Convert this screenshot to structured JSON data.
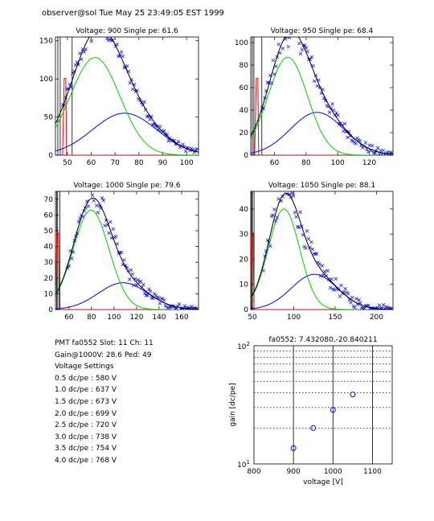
{
  "header": "observer@sol  Tue May 25 23:49:05 EST 1999",
  "info": {
    "pmt_line": "PMT fa0552 Slot: 11 Ch: 11",
    "gain_line": "Gain@1000V: 28.6 Ped: 49",
    "settings_title": "Voltage Settings",
    "settings": [
      "0.5 dc/pe : 580 V",
      "1.0 dc/pe : 637 V",
      "1.5 dc/pe : 673 V",
      "2.0 dc/pe : 699 V",
      "2.5 dc/pe : 720 V",
      "3.0 dc/pe : 738 V",
      "3.5 dc/pe : 754 V",
      "4.0 dc/pe : 768 V"
    ]
  },
  "colors": {
    "data_points": "#0000ff",
    "total_fit": "#000000",
    "gaussian_1pe": "#00d000",
    "gaussian_2pe": "#0000ff",
    "pedestal": "#ff0000",
    "gain_fit": "#ff0000"
  },
  "chart_data": [
    {
      "type": "scatter",
      "title": "Voltage: 900 Single pe: 61.6",
      "xlim": [
        45,
        105
      ],
      "ylim": [
        0,
        155
      ],
      "xticks": [
        50,
        60,
        70,
        80,
        90,
        100
      ],
      "yticks": [
        0,
        50,
        100,
        150
      ],
      "pedestal": {
        "position": 49,
        "lines_at": [
          46,
          47,
          52
        ]
      },
      "single_pe": {
        "mean": 61.6,
        "sigma": 10.4,
        "amplitude": 128
      },
      "double_pe": {
        "mean": 74,
        "sigma": 13.5,
        "amplitude": 55
      },
      "scatter_spread": 7
    },
    {
      "type": "scatter",
      "title": "Voltage: 950 Single pe: 68.4",
      "xlim": [
        45,
        135
      ],
      "ylim": [
        0,
        105
      ],
      "xticks": [
        60,
        80,
        100,
        120
      ],
      "yticks": [
        0,
        20,
        40,
        60,
        80,
        100
      ],
      "pedestal": {
        "position": 49,
        "lines_at": [
          46,
          47,
          52
        ]
      },
      "single_pe": {
        "mean": 68.4,
        "sigma": 12.5,
        "amplitude": 87
      },
      "double_pe": {
        "mean": 87,
        "sigma": 17,
        "amplitude": 38
      },
      "scatter_spread": 7
    },
    {
      "type": "scatter",
      "title": "Voltage: 1000 Single pe: 79.6",
      "xlim": [
        48,
        175
      ],
      "ylim": [
        0,
        75
      ],
      "xticks": [
        60,
        80,
        100,
        120,
        140,
        160
      ],
      "yticks": [
        0,
        10,
        20,
        30,
        40,
        50,
        60,
        70
      ],
      "pedestal": {
        "position": 50,
        "lines_at": [
          49,
          50,
          52
        ]
      },
      "single_pe": {
        "mean": 79.6,
        "sigma": 16,
        "amplitude": 63
      },
      "double_pe": {
        "mean": 108,
        "sigma": 22,
        "amplitude": 17
      },
      "scatter_spread": 5
    },
    {
      "type": "scatter",
      "title": "Voltage: 1050 Single pe: 88.1",
      "xlim": [
        48,
        220
      ],
      "ylim": [
        0,
        47
      ],
      "xticks": [
        50,
        100,
        150,
        200
      ],
      "yticks": [
        0,
        10,
        20,
        30,
        40
      ],
      "pedestal": {
        "position": 50,
        "lines_at": [
          49,
          50,
          52
        ]
      },
      "single_pe": {
        "mean": 88.1,
        "sigma": 19,
        "amplitude": 40
      },
      "double_pe": {
        "mean": 125,
        "sigma": 28,
        "amplitude": 14
      },
      "scatter_spread": 4
    },
    {
      "type": "line",
      "scale": "log",
      "title": "fa0552: 7.432080,-20.840211",
      "xlabel": "voltage [V]",
      "ylabel": "gain [dc/pe]",
      "xlim": [
        800,
        1150
      ],
      "ylim": [
        10,
        100
      ],
      "xticks": [
        800,
        900,
        1000,
        1100
      ],
      "xtick_labels": [
        "800",
        "900",
        "1000",
        "1100"
      ],
      "ytick_labels": [
        {
          "value": 10,
          "base": "10",
          "exp": "1"
        },
        {
          "value": 100,
          "base": "10",
          "exp": "2"
        }
      ],
      "x": [
        900,
        950,
        1000,
        1050
      ],
      "y": [
        13.6,
        20.1,
        28.6,
        38.7
      ],
      "fit": {
        "slope": 7.43208,
        "intercept": -20.840211
      }
    }
  ]
}
